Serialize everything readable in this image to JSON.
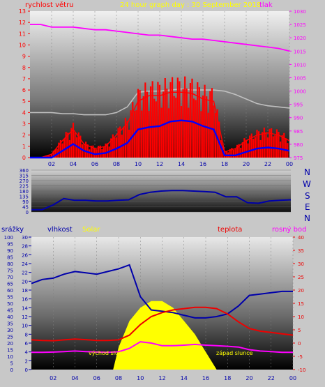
{
  "header": {
    "wind_label": "rychlost větru",
    "title": "24 hour graph day : 30 September 2018",
    "pressure_label": "tlak"
  },
  "middle": {
    "compass": [
      "N",
      "W",
      "S",
      "E",
      "N"
    ]
  },
  "bottom_header": {
    "rain_label": "srážky",
    "humidity_label": "vlhkost",
    "solar_label": "Solar",
    "temp_label": "teplota",
    "dew_label": "rosný bod"
  },
  "annotations": {
    "sunrise": "východ slunce",
    "sunset": "západ slunce"
  },
  "colors": {
    "wind": "#ff0000",
    "wind_avg": "#0000ff",
    "pressure": "#ff00ff",
    "pressure_gray": "#c0c0c0",
    "direction": "#0000aa",
    "humidity": "#0000aa",
    "temperature": "#ee0000",
    "dew_point": "#ff00ff",
    "solar": "#ffff00",
    "accent_yellow": "#ffff00"
  },
  "chart_data": [
    {
      "type": "line",
      "name": "wind_and_pressure",
      "x_ticks": [
        "02",
        "04",
        "06",
        "08",
        "10",
        "12",
        "14",
        "16",
        "18",
        "20",
        "22",
        "00"
      ],
      "y_left": {
        "label": "rychlost větru",
        "ylim": [
          0,
          13
        ],
        "ticks": [
          0,
          1,
          2,
          3,
          4,
          5,
          6,
          7,
          8,
          9,
          10,
          11,
          12,
          13
        ]
      },
      "y_right": {
        "label": "tlak",
        "ylim": [
          975,
          1030
        ],
        "ticks": [
          975,
          980,
          985,
          990,
          995,
          1000,
          1005,
          1010,
          1015,
          1020,
          1025,
          1030
        ]
      },
      "series": [
        {
          "name": "tlak",
          "axis": "right",
          "x": [
            0,
            1,
            2,
            3,
            4,
            5,
            6,
            7,
            8,
            9,
            10,
            11,
            12,
            13,
            14,
            15,
            16,
            17,
            18,
            19,
            20,
            21,
            22,
            23,
            24
          ],
          "values": [
            1025,
            1025,
            1024,
            1024,
            1024,
            1023.5,
            1023,
            1023,
            1022.5,
            1022,
            1021.5,
            1021,
            1021,
            1020.5,
            1020,
            1019.5,
            1019.5,
            1019,
            1018.5,
            1018,
            1017.5,
            1017,
            1016.5,
            1016,
            1015
          ]
        },
        {
          "name": "wind_gust",
          "axis": "left",
          "x": [
            0,
            1,
            2,
            3,
            4,
            5,
            6,
            7,
            8,
            9,
            10,
            11,
            12,
            13,
            14,
            15,
            16,
            17,
            18,
            19,
            20,
            21,
            22,
            23,
            24
          ],
          "values": [
            0,
            0,
            0.3,
            1.5,
            2.5,
            1.2,
            0.8,
            1.0,
            2.0,
            3.0,
            5.0,
            5.5,
            5.5,
            5.8,
            5.8,
            5.7,
            5.2,
            5.0,
            0.5,
            0.8,
            1.5,
            2.0,
            2.2,
            2.0,
            1.5
          ]
        },
        {
          "name": "wind_avg",
          "axis": "left",
          "x": [
            0,
            1,
            2,
            3,
            4,
            5,
            6,
            7,
            8,
            9,
            10,
            11,
            12,
            13,
            14,
            15,
            16,
            17,
            18,
            19,
            20,
            21,
            22,
            23,
            24
          ],
          "values": [
            0,
            0,
            0,
            0.6,
            1.2,
            0.6,
            0.3,
            0.4,
            0.8,
            1.3,
            2.5,
            2.7,
            2.8,
            3.2,
            3.3,
            3.2,
            2.8,
            2.5,
            0.2,
            0.2,
            0.5,
            0.8,
            0.9,
            0.8,
            0.6
          ]
        },
        {
          "name": "wind_max",
          "axis": "left",
          "x": [
            0,
            1,
            2,
            3,
            4,
            5,
            6,
            7,
            8,
            9,
            10,
            11,
            12,
            13,
            14,
            15,
            16,
            17,
            18,
            19,
            20,
            21,
            22,
            23,
            24
          ],
          "values": [
            4,
            4,
            4,
            3.9,
            3.9,
            3.8,
            3.8,
            3.8,
            4.0,
            4.5,
            5.8,
            5.9,
            5.9,
            6.0,
            6.1,
            6.0,
            6.0,
            6.0,
            5.9,
            5.6,
            5.2,
            4.8,
            4.6,
            4.5,
            4.4
          ]
        }
      ]
    },
    {
      "type": "line",
      "name": "wind_direction",
      "x_ticks": [
        "02",
        "04",
        "06",
        "08",
        "10",
        "12",
        "14",
        "16",
        "18",
        "20",
        "22",
        "00"
      ],
      "y": {
        "ylim": [
          0,
          360
        ],
        "ticks": [
          0,
          45,
          90,
          135,
          180,
          225,
          270,
          315,
          360
        ]
      },
      "series": [
        {
          "name": "direction",
          "x": [
            0,
            1,
            2,
            3,
            4,
            5,
            6,
            7,
            8,
            9,
            10,
            11,
            12,
            13,
            14,
            15,
            16,
            17,
            18,
            19,
            20,
            21,
            22,
            23,
            24
          ],
          "values": [
            20,
            20,
            60,
            115,
            100,
            100,
            95,
            95,
            100,
            105,
            150,
            170,
            180,
            185,
            185,
            180,
            175,
            170,
            130,
            130,
            80,
            75,
            95,
            100,
            105
          ]
        }
      ]
    },
    {
      "type": "area",
      "name": "humidity_temp_solar",
      "x_ticks": [
        "02",
        "04",
        "06",
        "08",
        "10",
        "12",
        "14",
        "16",
        "18",
        "20",
        "22",
        "00"
      ],
      "y_rain": {
        "label": "srážky",
        "ylim": [
          0,
          100
        ],
        "ticks": [
          0,
          5,
          10,
          15,
          20,
          25,
          30,
          35,
          40,
          45,
          50,
          55,
          60,
          65,
          70,
          75,
          80,
          85,
          90,
          95,
          100
        ]
      },
      "y_humidity": {
        "label": "vlhkost",
        "ylim": [
          0,
          30
        ],
        "ticks": [
          0,
          2,
          4,
          6,
          8,
          10,
          12,
          14,
          16,
          18,
          20,
          22,
          24,
          26,
          28,
          30
        ]
      },
      "y_temp": {
        "label": "teplota",
        "ylim": [
          -10,
          40
        ],
        "ticks": [
          -10,
          -5,
          0,
          5,
          10,
          15,
          20,
          25,
          30,
          35,
          40
        ]
      },
      "series": [
        {
          "name": "vlhkost",
          "axis": "rain",
          "x": [
            0,
            1,
            2,
            3,
            4,
            5,
            6,
            7,
            8,
            9,
            10,
            11,
            12,
            13,
            14,
            15,
            16,
            17,
            18,
            19,
            20,
            21,
            22,
            23,
            24
          ],
          "values": [
            65,
            68,
            69,
            72,
            74,
            73,
            72,
            74,
            76,
            79,
            55,
            45,
            44,
            43,
            41,
            39,
            39,
            40,
            42,
            48,
            56,
            57,
            58,
            59,
            59
          ]
        },
        {
          "name": "teplota",
          "axis": "temp",
          "x": [
            0,
            1,
            2,
            3,
            4,
            5,
            6,
            7,
            8,
            9,
            10,
            11,
            12,
            13,
            14,
            15,
            16,
            17,
            18,
            19,
            20,
            21,
            22,
            23,
            24
          ],
          "values": [
            1.2,
            1.0,
            0.9,
            1.2,
            1.5,
            1.3,
            1.0,
            1.0,
            1.2,
            3.0,
            7.0,
            10.0,
            11.5,
            12.5,
            13.0,
            13.5,
            13.5,
            13.0,
            11.0,
            8.0,
            5.5,
            4.5,
            4.0,
            3.5,
            3.0
          ]
        },
        {
          "name": "rosný bod",
          "axis": "temp",
          "x": [
            0,
            1,
            2,
            3,
            4,
            5,
            6,
            7,
            8,
            9,
            10,
            11,
            12,
            13,
            14,
            15,
            16,
            17,
            18,
            19,
            20,
            21,
            22,
            23,
            24
          ],
          "values": [
            -3.5,
            -3.5,
            -3.4,
            -3.2,
            -3.0,
            -3.2,
            -3.4,
            -3.5,
            -3.3,
            -2.0,
            0.5,
            0.0,
            -1.0,
            -1.0,
            -0.8,
            -0.5,
            -0.8,
            -1.0,
            -1.2,
            -1.5,
            -2.5,
            -3.0,
            -3.2,
            -3.5,
            -3.5
          ]
        },
        {
          "name": "Solar",
          "axis": "humidity",
          "x": [
            7.5,
            8,
            9,
            10,
            11,
            12,
            13,
            14,
            15,
            16,
            17
          ],
          "values": [
            0,
            5,
            11,
            14,
            15.5,
            15.5,
            14,
            11,
            8,
            4,
            0
          ]
        }
      ]
    }
  ]
}
